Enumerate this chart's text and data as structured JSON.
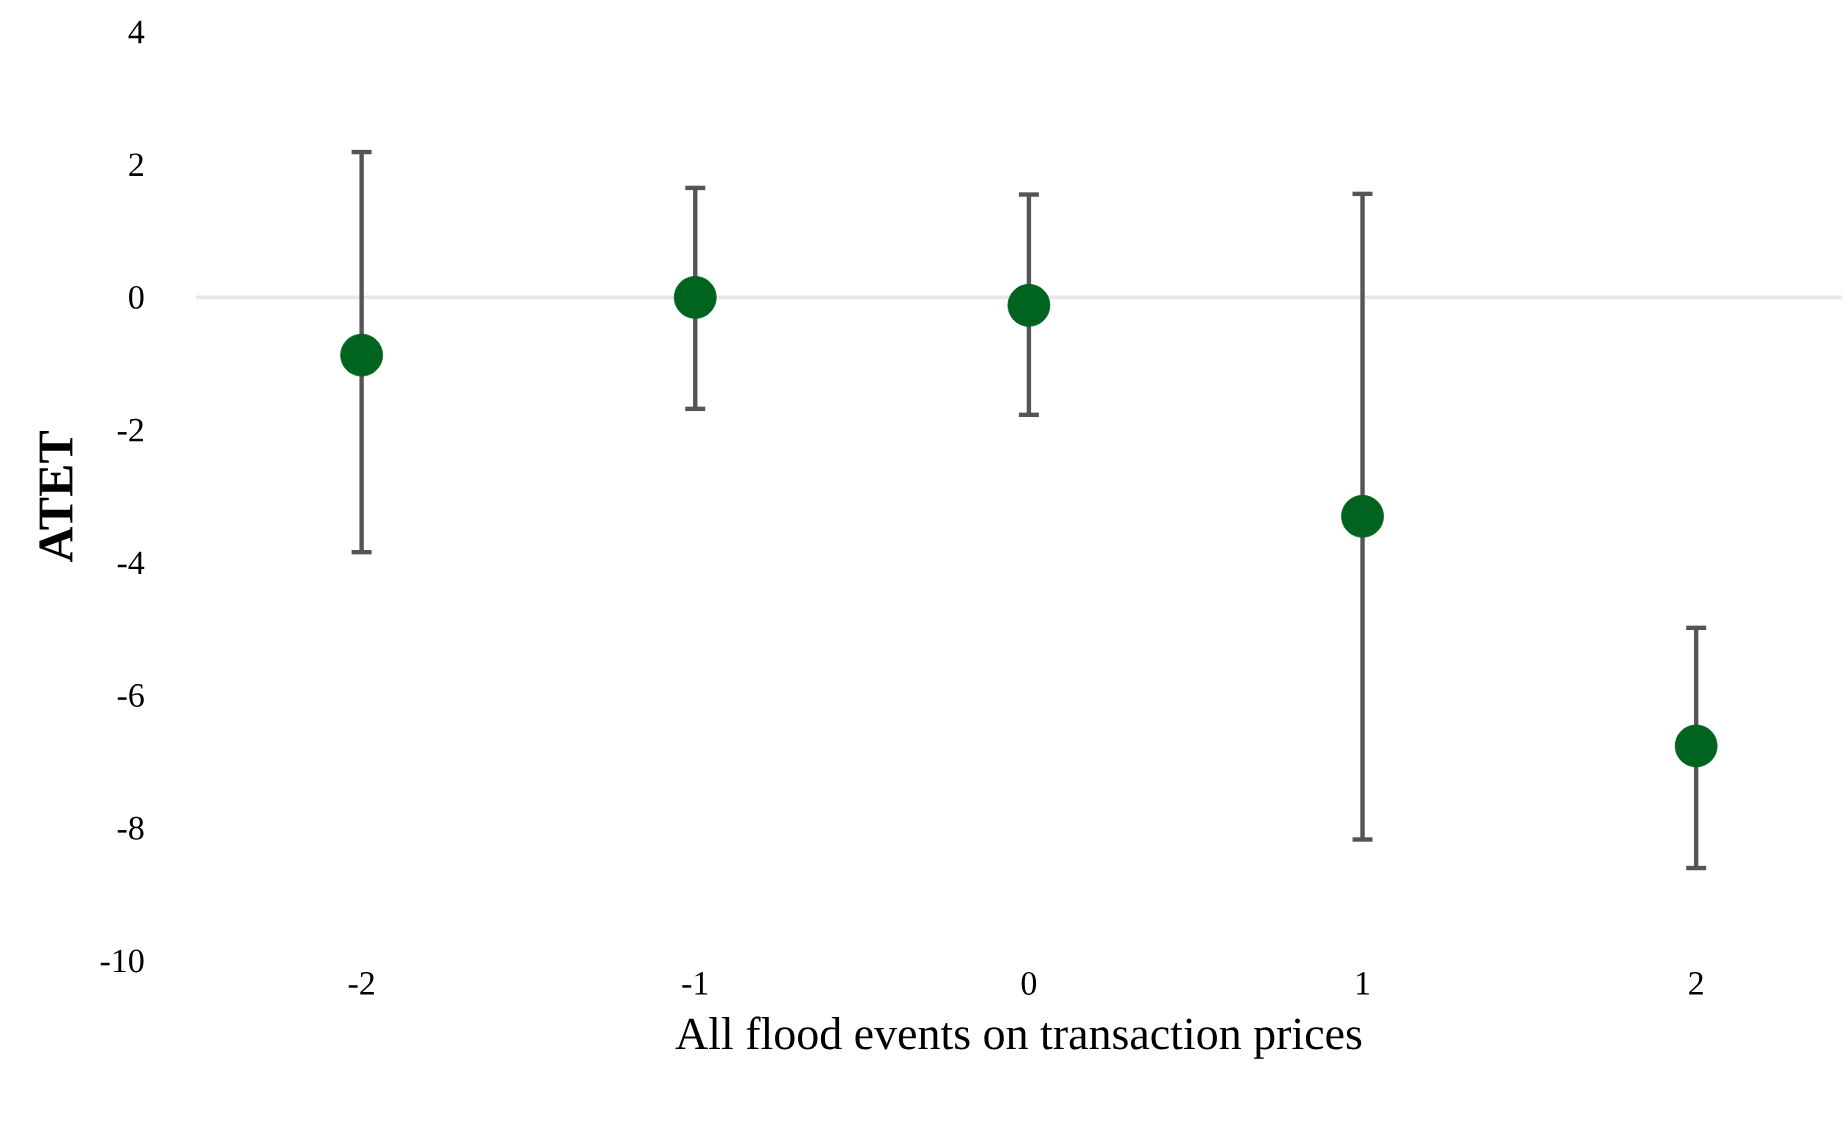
{
  "chart_data": {
    "type": "scatter",
    "xlabel": "All flood events on transaction prices",
    "ylabel": "ATET",
    "categories": [
      "-2",
      "-1",
      "0",
      "1",
      "2"
    ],
    "values": [
      -0.87,
      0.0,
      -0.12,
      -3.3,
      -6.76
    ],
    "errors": [
      [
        -3.84,
        2.19
      ],
      [
        -1.68,
        1.65
      ],
      [
        -1.77,
        1.55
      ],
      [
        -8.17,
        1.56
      ],
      [
        -8.6,
        -4.98
      ]
    ],
    "color": "#006420",
    "ylim": [
      -10,
      4
    ],
    "yticks": [
      -10,
      -8,
      -6,
      -4,
      -2,
      0,
      2,
      4
    ],
    "ref_lines": [
      {
        "axis": "y",
        "value": 0,
        "color": "#e8e8e8"
      }
    ]
  }
}
